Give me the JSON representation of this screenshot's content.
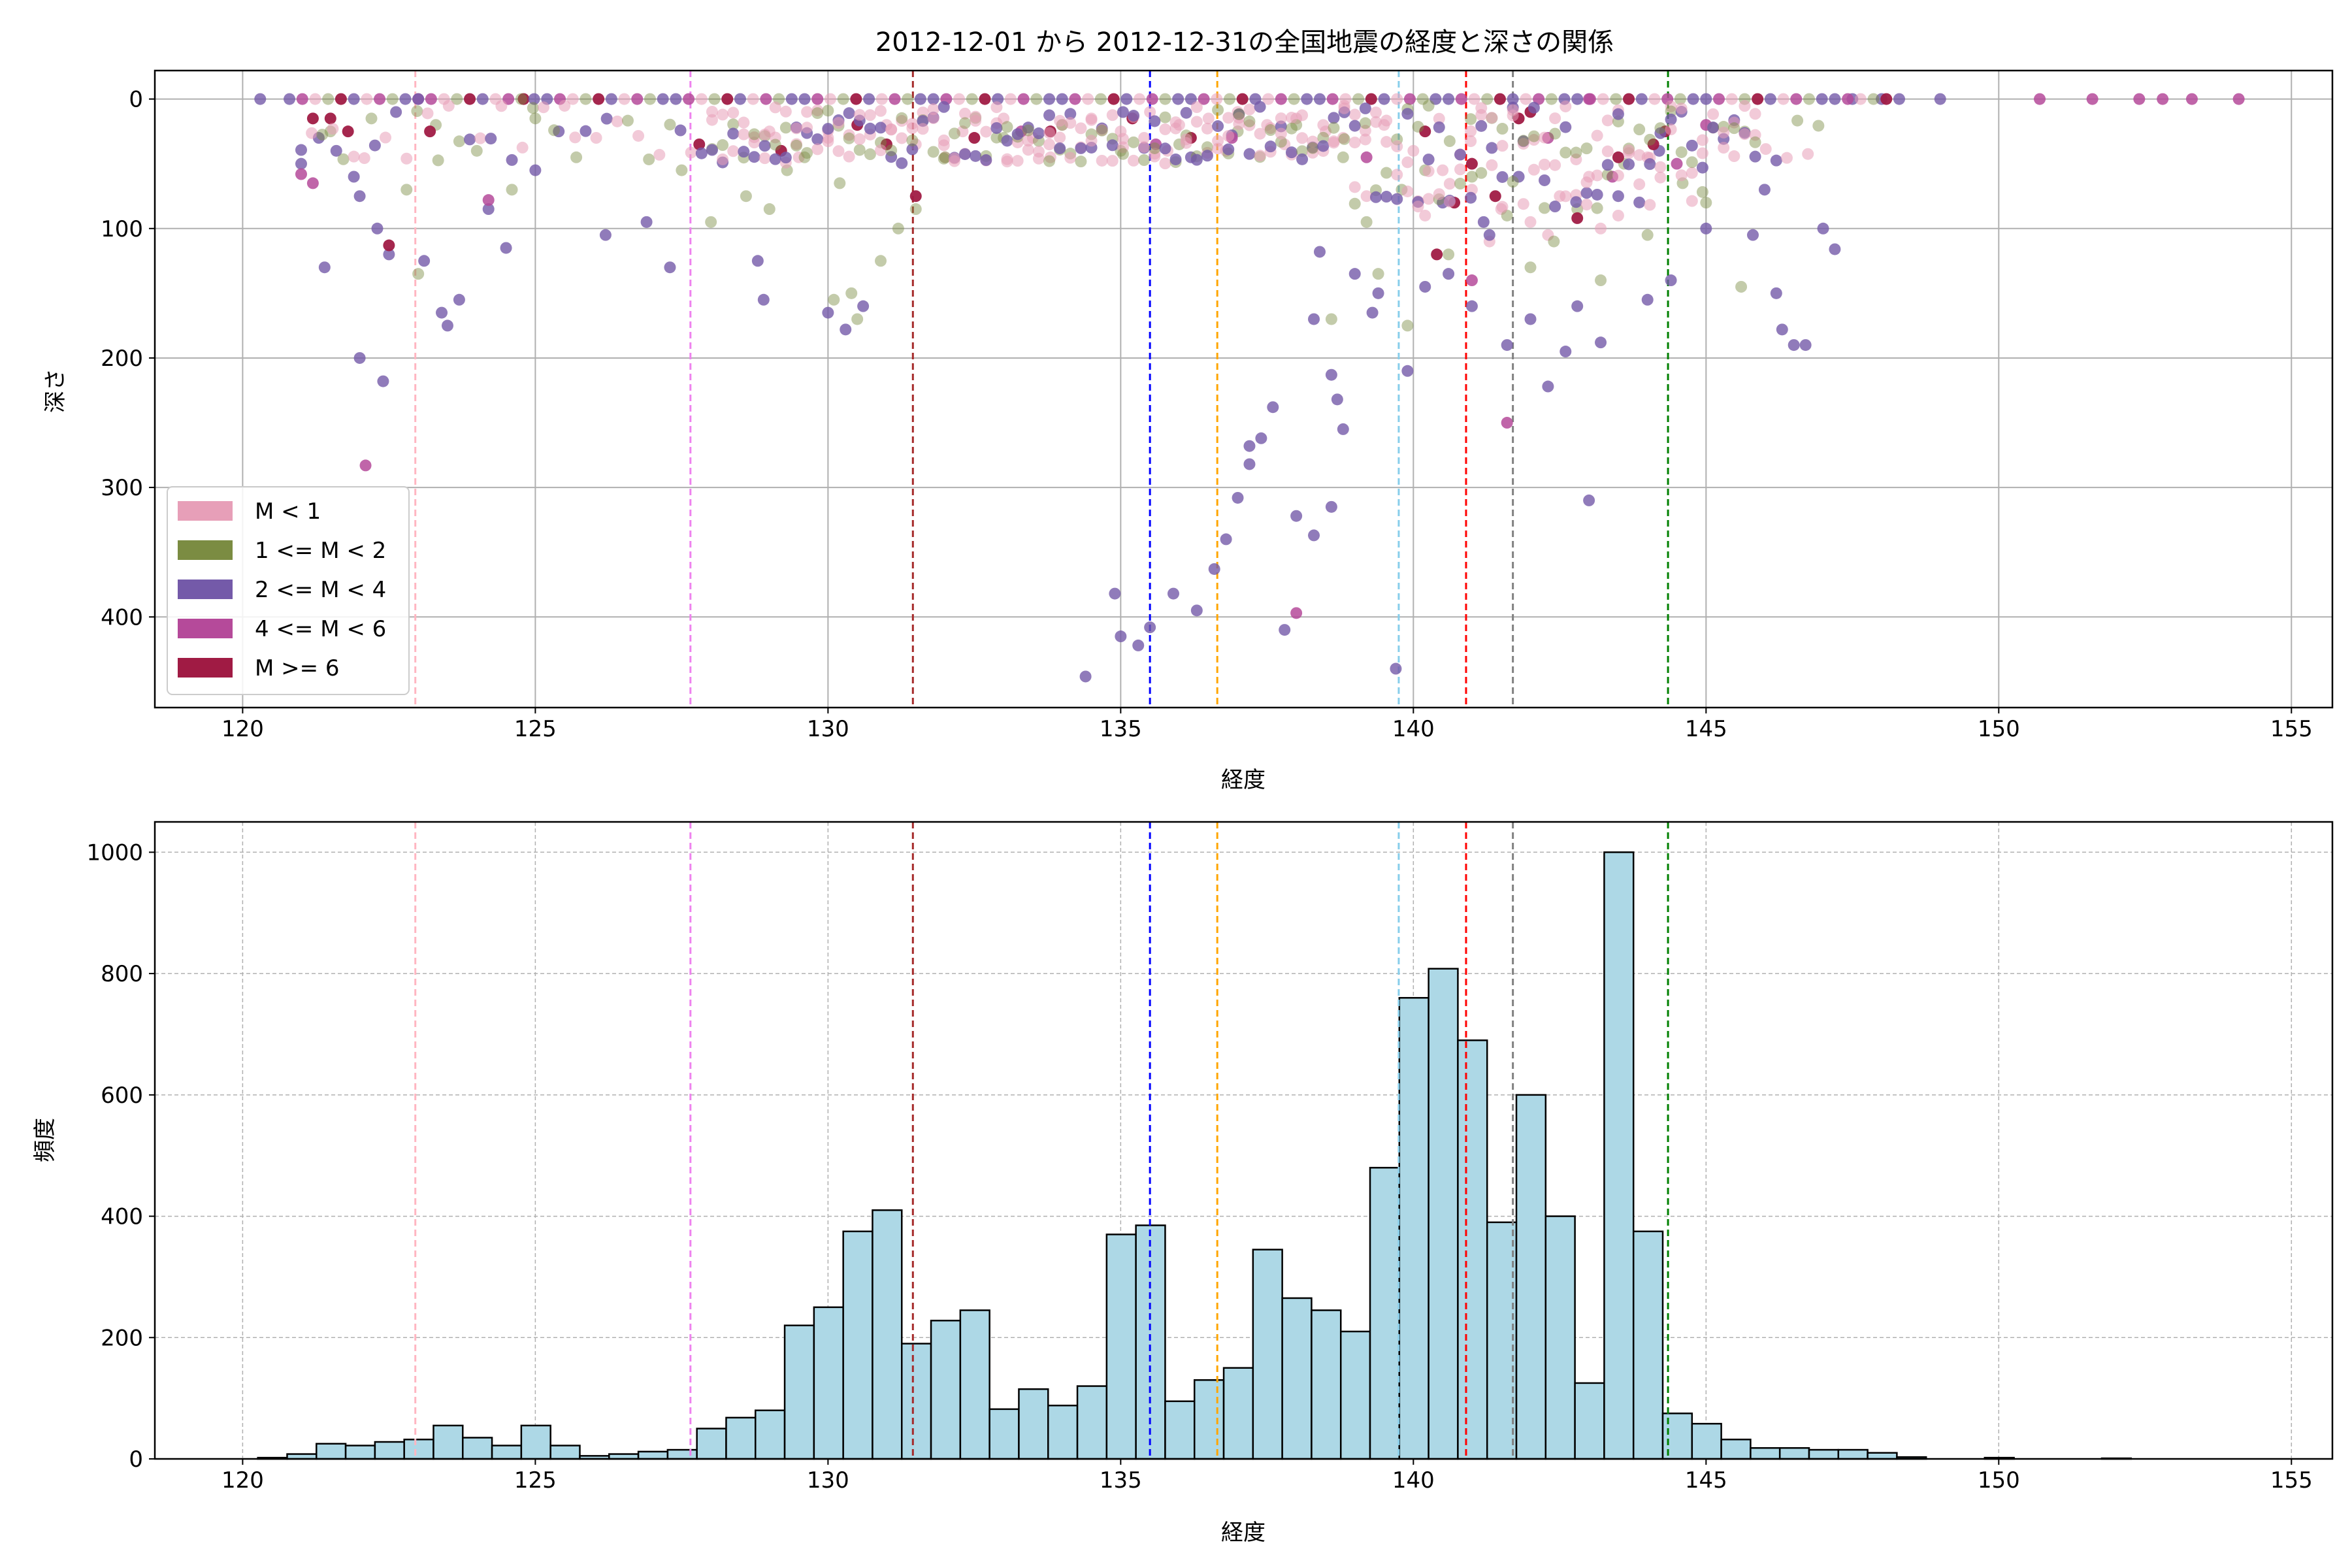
{
  "figure": {
    "title": "2012-12-01 から 2012-12-31の全国地震の経度と深さの関係"
  },
  "colors": {
    "m_lt1": "#e79fb8",
    "m_1_2": "#7b8c42",
    "m_2_4": "#745aa9",
    "m_4_6": "#b54a9a",
    "m_ge6": "#a01b44",
    "hist_fill": "#add8e6",
    "hist_edge": "#000000"
  },
  "chart_data": [
    {
      "type": "scatter",
      "title": "2012-12-01 から 2012-12-31の全国地震の経度と深さの関係",
      "xlabel": "経度",
      "ylabel": "深さ",
      "xlim": [
        118.5,
        155.7
      ],
      "ylim": [
        470,
        -22
      ],
      "y_inverted": true,
      "xticks": [
        120,
        125,
        130,
        135,
        140,
        145,
        150,
        155
      ],
      "yticks": [
        0,
        100,
        200,
        300,
        400
      ],
      "grid": true,
      "legend_position": "lower-left",
      "legend": [
        "M < 1",
        "1 <= M < 2",
        "2 <= M < 4",
        "4 <= M < 6",
        "M >= 6"
      ],
      "vlines": [
        {
          "x": 122.95,
          "color": "#ffb6c1"
        },
        {
          "x": 127.65,
          "color": "#ee82ee"
        },
        {
          "x": 131.45,
          "color": "#a52a2a"
        },
        {
          "x": 135.5,
          "color": "#0000ff"
        },
        {
          "x": 136.65,
          "color": "#ffa500"
        },
        {
          "x": 139.75,
          "color": "#87ceeb"
        },
        {
          "x": 140.9,
          "color": "#ff0000"
        },
        {
          "x": 141.7,
          "color": "#808080"
        },
        {
          "x": 144.35,
          "color": "#008000"
        }
      ],
      "series": [
        {
          "name": "M < 1",
          "points": [
            [
              131.0,
              20
            ],
            [
              131.5,
              35
            ],
            [
              132.3,
              25
            ],
            [
              133.0,
              15
            ],
            [
              133.5,
              30
            ],
            [
              134.0,
              20
            ],
            [
              134.5,
              15
            ],
            [
              135.0,
              25
            ],
            [
              135.5,
              10
            ],
            [
              136.0,
              20
            ],
            [
              136.5,
              15
            ],
            [
              137.0,
              10
            ],
            [
              137.5,
              20
            ],
            [
              138.0,
              15
            ],
            [
              138.5,
              25
            ],
            [
              139.0,
              12
            ],
            [
              139.5,
              20
            ],
            [
              140.0,
              40
            ],
            [
              140.5,
              55
            ],
            [
              141.0,
              70
            ],
            [
              141.5,
              85
            ],
            [
              142.0,
              95
            ],
            [
              142.5,
              75
            ],
            [
              143.0,
              60
            ],
            [
              143.5,
              90
            ],
            [
              144.0,
              45
            ],
            [
              130.0,
              30
            ],
            [
              129.0,
              25
            ],
            [
              132.0,
              45
            ],
            [
              136.8,
              40
            ],
            [
              137.8,
              35
            ],
            [
              138.8,
              30
            ],
            [
              139.2,
              75
            ],
            [
              140.2,
              90
            ],
            [
              141.3,
              110
            ],
            [
              142.3,
              105
            ],
            [
              143.2,
              100
            ],
            [
              129.5,
              45
            ],
            [
              133.8,
              45
            ],
            [
              135.8,
              40
            ]
          ]
        },
        {
          "name": "1 <= M < 2",
          "points": [
            [
              121.5,
              25
            ],
            [
              122.2,
              15
            ],
            [
              122.8,
              70
            ],
            [
              123.0,
              135
            ],
            [
              123.3,
              20
            ],
            [
              124.0,
              40
            ],
            [
              124.6,
              70
            ],
            [
              125.0,
              15
            ],
            [
              125.7,
              45
            ],
            [
              127.5,
              55
            ],
            [
              128.0,
              95
            ],
            [
              128.6,
              75
            ],
            [
              129.0,
              85
            ],
            [
              129.6,
              45
            ],
            [
              130.2,
              65
            ],
            [
              130.4,
              150
            ],
            [
              130.9,
              125
            ],
            [
              131.2,
              100
            ],
            [
              131.5,
              85
            ],
            [
              132.0,
              45
            ],
            [
              133.0,
              30
            ],
            [
              134.0,
              20
            ],
            [
              135.0,
              40
            ],
            [
              136.0,
              35
            ],
            [
              137.0,
              25
            ],
            [
              138.0,
              20
            ],
            [
              138.8,
              45
            ],
            [
              139.2,
              95
            ],
            [
              139.4,
              135
            ],
            [
              139.8,
              70
            ],
            [
              140.2,
              55
            ],
            [
              140.6,
              120
            ],
            [
              141.0,
              60
            ],
            [
              141.6,
              90
            ],
            [
              142.0,
              130
            ],
            [
              142.4,
              110
            ],
            [
              142.8,
              85
            ],
            [
              143.2,
              140
            ],
            [
              143.6,
              50
            ],
            [
              144.0,
              105
            ],
            [
              144.6,
              65
            ],
            [
              145.0,
              80
            ],
            [
              145.6,
              145
            ],
            [
              130.5,
              170
            ],
            [
              130.1,
              155
            ],
            [
              138.6,
              170
            ],
            [
              129.3,
              55
            ],
            [
              139.9,
              175
            ]
          ]
        },
        {
          "name": "2 <= M < 4",
          "points": [
            [
              120.3,
              0
            ],
            [
              121.0,
              50
            ],
            [
              121.3,
              30
            ],
            [
              121.6,
              40
            ],
            [
              121.9,
              60
            ],
            [
              122.0,
              75
            ],
            [
              122.3,
              100
            ],
            [
              122.5,
              120
            ],
            [
              122.0,
              200
            ],
            [
              122.4,
              218
            ],
            [
              121.4,
              130
            ],
            [
              123.1,
              125
            ],
            [
              123.4,
              165
            ],
            [
              123.7,
              155
            ],
            [
              123.5,
              175
            ],
            [
              124.2,
              85
            ],
            [
              124.5,
              115
            ],
            [
              125.0,
              55
            ],
            [
              125.4,
              25
            ],
            [
              126.2,
              105
            ],
            [
              127.3,
              130
            ],
            [
              126.9,
              95
            ],
            [
              128.8,
              125
            ],
            [
              128.9,
              155
            ],
            [
              130.0,
              165
            ],
            [
              130.3,
              178
            ],
            [
              130.6,
              160
            ],
            [
              134.4,
              446
            ],
            [
              134.9,
              382
            ],
            [
              135.0,
              415
            ],
            [
              135.3,
              422
            ],
            [
              135.5,
              408
            ],
            [
              135.9,
              382
            ],
            [
              136.3,
              395
            ],
            [
              136.6,
              363
            ],
            [
              136.8,
              340
            ],
            [
              137.0,
              308
            ],
            [
              137.2,
              268
            ],
            [
              137.4,
              262
            ],
            [
              137.6,
              238
            ],
            [
              137.8,
              410
            ],
            [
              138.0,
              322
            ],
            [
              138.3,
              337
            ],
            [
              138.6,
              213
            ],
            [
              138.7,
              232
            ],
            [
              138.8,
              255
            ],
            [
              138.3,
              170
            ],
            [
              139.0,
              135
            ],
            [
              139.3,
              165
            ],
            [
              139.7,
              440
            ],
            [
              139.9,
              210
            ],
            [
              140.2,
              145
            ],
            [
              140.6,
              135
            ],
            [
              141.0,
              160
            ],
            [
              141.3,
              105
            ],
            [
              141.6,
              190
            ],
            [
              142.0,
              170
            ],
            [
              142.3,
              222
            ],
            [
              142.6,
              195
            ],
            [
              143.0,
              310
            ],
            [
              143.2,
              188
            ],
            [
              144.0,
              155
            ],
            [
              144.4,
              140
            ],
            [
              145.0,
              100
            ],
            [
              145.8,
              105
            ],
            [
              146.2,
              150
            ],
            [
              146.3,
              178
            ],
            [
              146.5,
              190
            ],
            [
              146.7,
              190
            ],
            [
              147.0,
              100
            ],
            [
              147.2,
              116
            ],
            [
              147.5,
              0
            ],
            [
              148.0,
              0
            ],
            [
              149.0,
              0
            ],
            [
              136.2,
              45
            ],
            [
              136.9,
              28
            ],
            [
              138.4,
              118
            ],
            [
              138.6,
              315
            ],
            [
              137.2,
              282
            ],
            [
              140.5,
              80
            ],
            [
              141.8,
              60
            ],
            [
              143.5,
              75
            ],
            [
              144.2,
              40
            ],
            [
              146.0,
              70
            ],
            [
              139.4,
              150
            ],
            [
              141.2,
              95
            ],
            [
              142.8,
              160
            ]
          ]
        },
        {
          "name": "4 <= M < 6",
          "points": [
            [
              121.0,
              58
            ],
            [
              121.2,
              65
            ],
            [
              122.1,
              283
            ],
            [
              123.0,
              0
            ],
            [
              124.2,
              78
            ],
            [
              133.3,
              25
            ],
            [
              135.6,
              35
            ],
            [
              136.9,
              30
            ],
            [
              138.0,
              397
            ],
            [
              139.2,
              45
            ],
            [
              141.0,
              140
            ],
            [
              141.6,
              250
            ],
            [
              142.3,
              30
            ],
            [
              143.4,
              60
            ],
            [
              144.5,
              50
            ],
            [
              150.7,
              0
            ],
            [
              151.6,
              0
            ],
            [
              152.4,
              0
            ],
            [
              152.8,
              0
            ],
            [
              153.3,
              0
            ],
            [
              154.1,
              0
            ],
            [
              145.0,
              20
            ],
            [
              143.0,
              0
            ]
          ]
        },
        {
          "name": "M >= 6",
          "points": [
            [
              121.2,
              15
            ],
            [
              121.5,
              15
            ],
            [
              121.8,
              25
            ],
            [
              122.5,
              113
            ],
            [
              123.2,
              25
            ],
            [
              124.8,
              0
            ],
            [
              127.8,
              35
            ],
            [
              129.2,
              40
            ],
            [
              130.5,
              20
            ],
            [
              131.0,
              35
            ],
            [
              131.5,
              75
            ],
            [
              132.5,
              30
            ],
            [
              133.8,
              25
            ],
            [
              135.2,
              15
            ],
            [
              136.2,
              30
            ],
            [
              140.2,
              25
            ],
            [
              140.7,
              80
            ],
            [
              141.0,
              50
            ],
            [
              141.4,
              75
            ],
            [
              141.8,
              15
            ],
            [
              142.0,
              10
            ],
            [
              142.8,
              92
            ],
            [
              143.5,
              45
            ],
            [
              144.1,
              35
            ],
            [
              144.3,
              25
            ],
            [
              140.4,
              120
            ]
          ]
        }
      ]
    },
    {
      "type": "bar",
      "xlabel": "経度",
      "ylabel": "頻度",
      "xlim": [
        118.5,
        155.7
      ],
      "ylim": [
        0,
        1050
      ],
      "xticks": [
        120,
        125,
        130,
        135,
        140,
        145,
        150,
        155
      ],
      "yticks": [
        0,
        200,
        400,
        600,
        800,
        1000
      ],
      "grid": true,
      "grid_style": "dashed",
      "bin_start": 120.26,
      "bin_width": 0.5,
      "vlines": [
        {
          "x": 122.95,
          "color": "#ffb6c1"
        },
        {
          "x": 127.65,
          "color": "#ee82ee"
        },
        {
          "x": 131.45,
          "color": "#a52a2a"
        },
        {
          "x": 135.5,
          "color": "#0000ff"
        },
        {
          "x": 136.65,
          "color": "#ffa500"
        },
        {
          "x": 139.75,
          "color": "#87ceeb"
        },
        {
          "x": 140.9,
          "color": "#ff0000"
        },
        {
          "x": 141.7,
          "color": "#808080"
        },
        {
          "x": 144.35,
          "color": "#008000"
        }
      ],
      "values": [
        2,
        8,
        25,
        22,
        28,
        32,
        55,
        35,
        22,
        55,
        22,
        5,
        8,
        12,
        15,
        50,
        68,
        80,
        220,
        250,
        375,
        410,
        190,
        228,
        245,
        82,
        115,
        88,
        120,
        370,
        385,
        95,
        130,
        150,
        345,
        265,
        245,
        210,
        480,
        760,
        808,
        690,
        390,
        600,
        400,
        125,
        1000,
        375,
        75,
        58,
        32,
        18,
        18,
        15,
        15,
        10,
        3,
        0,
        0,
        2,
        0,
        0,
        0,
        1,
        0,
        0,
        0,
        0,
        0,
        0
      ]
    }
  ]
}
